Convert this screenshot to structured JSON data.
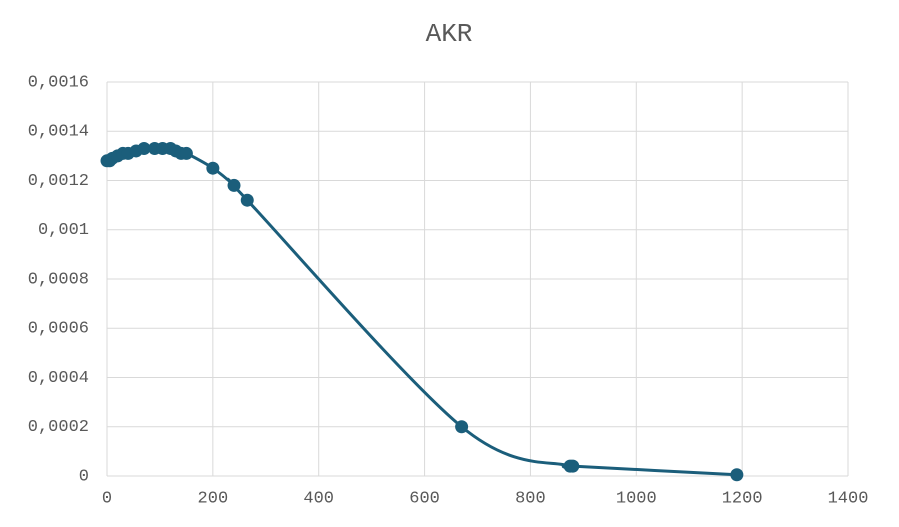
{
  "chart_data": {
    "type": "scatter",
    "title": "AKR",
    "line": "smooth",
    "color": "#1b5e7b",
    "grid": true,
    "x": [
      0,
      5,
      10,
      20,
      30,
      40,
      55,
      70,
      90,
      105,
      120,
      130,
      140,
      150,
      200,
      240,
      265,
      670,
      875,
      880,
      1190
    ],
    "values": [
      0.00128,
      0.00128,
      0.00129,
      0.0013,
      0.00131,
      0.00131,
      0.00132,
      0.00133,
      0.00133,
      0.00133,
      0.00133,
      0.00132,
      0.00131,
      0.00131,
      0.00125,
      0.00118,
      0.00112,
      0.0002,
      4e-05,
      4e-05,
      5e-06
    ],
    "xlim": [
      0,
      1400
    ],
    "xticks": [
      0,
      200,
      400,
      600,
      800,
      1000,
      1200,
      1400
    ],
    "ylim": [
      0,
      0.0016
    ],
    "yticks": [
      0,
      {
        "value": 0.0002,
        "label": "0,0002"
      },
      {
        "value": 0.0004,
        "label": "0,0004"
      },
      {
        "value": 0.0006,
        "label": "0,0006"
      },
      {
        "value": 0.0008,
        "label": "0,0008"
      },
      {
        "value": 0.001,
        "label": "0,001"
      },
      {
        "value": 0.0012,
        "label": "0,0012"
      },
      {
        "value": 0.0014,
        "label": "0,0014"
      },
      {
        "value": 0.0016,
        "label": "0,0016"
      }
    ]
  }
}
